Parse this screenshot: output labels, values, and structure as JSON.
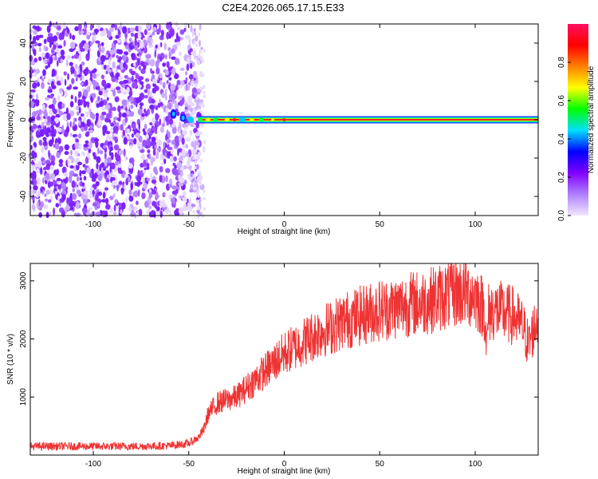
{
  "title": "C2E4.2026.065.17.15.E33",
  "chart_data": [
    {
      "type": "heatmap",
      "xlabel": "Height of straight line (km)",
      "ylabel": "Frequency (Hz)",
      "xlim": [
        -133,
        133
      ],
      "ylim": [
        -50,
        50
      ],
      "xticks": [
        -100,
        -50,
        0,
        50,
        100
      ],
      "yticks": [
        -40,
        -20,
        0,
        20,
        40
      ],
      "description_series": [
        {
          "name": "noise region",
          "x_range": [
            -133,
            -45
          ],
          "amplitude": "low (0.1-0.3)"
        },
        {
          "name": "carrier line",
          "x_range": [
            -60,
            133
          ],
          "frequency": 0,
          "amplitude": "high (0.8-1.0)"
        }
      ],
      "colorbar": {
        "label": "Normalized spectral amplitude",
        "range": [
          0.0,
          1.0
        ],
        "ticks": [
          0.0,
          0.2,
          0.4,
          0.6,
          0.8
        ],
        "tick_labels": [
          "0.0",
          "0.2",
          "0.4",
          "0.6",
          "0.8"
        ],
        "colors": [
          "#f0e6ff",
          "#b080ff",
          "#8000ff",
          "#0000ff",
          "#00e0ff",
          "#00ff00",
          "#ffff00",
          "#ff8000",
          "#ff0000",
          "#ff1060"
        ]
      }
    },
    {
      "type": "line",
      "xlabel": "Height of straight line (km)",
      "ylabel": "SNR (10 * v/v)",
      "xlim": [
        -133,
        133
      ],
      "ylim": [
        0,
        3300
      ],
      "xticks": [
        -100,
        -50,
        0,
        50,
        100
      ],
      "yticks": [
        1000,
        2000,
        3000
      ],
      "color": "#ee3333",
      "series": [
        {
          "name": "SNR",
          "x": [
            -133,
            -120,
            -100,
            -80,
            -60,
            -50,
            -45,
            -42,
            -40,
            -35,
            -30,
            -25,
            -20,
            -15,
            -10,
            -5,
            0,
            5,
            10,
            15,
            20,
            25,
            30,
            35,
            40,
            45,
            50,
            55,
            60,
            65,
            70,
            75,
            80,
            85,
            90,
            95,
            100,
            105,
            106,
            107,
            110,
            115,
            120,
            125,
            128,
            130,
            133
          ],
          "y": [
            150,
            150,
            150,
            150,
            160,
            200,
            300,
            450,
            700,
            900,
            950,
            1000,
            1150,
            1300,
            1450,
            1600,
            1750,
            1850,
            1950,
            2050,
            2150,
            2200,
            2300,
            2350,
            2400,
            2450,
            2500,
            2520,
            2550,
            2600,
            2620,
            2650,
            2700,
            2750,
            2800,
            2800,
            2750,
            2500,
            1800,
            2450,
            2500,
            2450,
            2400,
            2200,
            1900,
            2100,
            2400
          ]
        }
      ]
    }
  ]
}
